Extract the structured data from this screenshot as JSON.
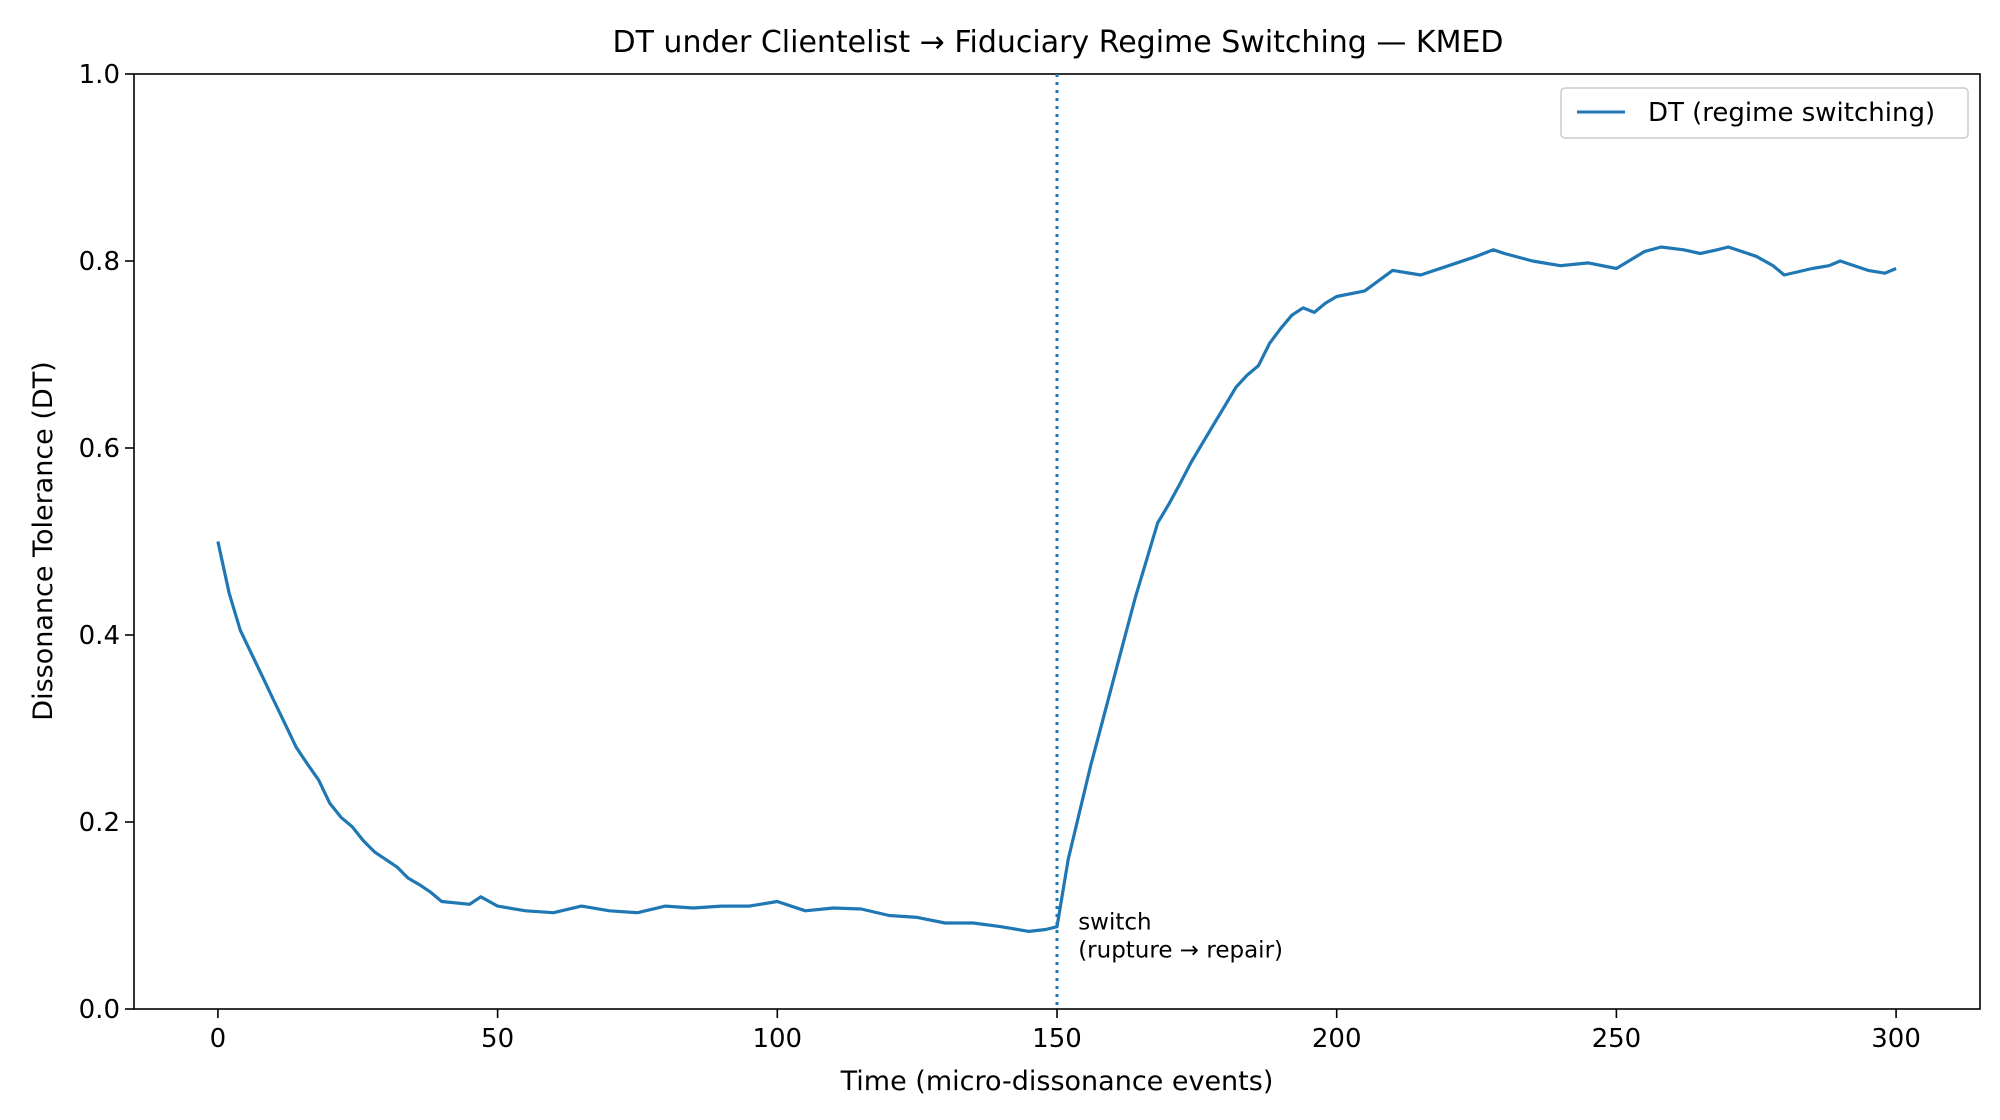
{
  "chart_data": {
    "type": "line",
    "title": "DT under Clientelist → Fiduciary Regime Switching — KMED",
    "xlabel": "Time (micro-dissonance events)",
    "ylabel": "Dissonance Tolerance (DT)",
    "xlim": [
      -15,
      315
    ],
    "ylim": [
      0,
      1.0
    ],
    "xticks": [
      0,
      50,
      100,
      150,
      200,
      250,
      300
    ],
    "yticks": [
      0.0,
      0.2,
      0.4,
      0.6,
      0.8,
      1.0
    ],
    "xtick_labels": [
      "0",
      "50",
      "100",
      "150",
      "200",
      "250",
      "300"
    ],
    "ytick_labels": [
      "0.0",
      "0.2",
      "0.4",
      "0.6",
      "0.8",
      "1.0"
    ],
    "grid": false,
    "legend_position": "top-right",
    "series": [
      {
        "name": "DT (regime switching)",
        "color": "#1f77b4",
        "x": [
          0,
          2,
          4,
          6,
          8,
          10,
          12,
          14,
          16,
          18,
          20,
          22,
          24,
          26,
          28,
          30,
          32,
          34,
          36,
          38,
          40,
          45,
          47,
          50,
          55,
          60,
          65,
          70,
          75,
          80,
          85,
          90,
          95,
          100,
          105,
          110,
          115,
          120,
          125,
          130,
          135,
          140,
          145,
          148,
          150,
          152,
          154,
          156,
          158,
          160,
          162,
          164,
          166,
          168,
          170,
          172,
          174,
          176,
          178,
          180,
          182,
          184,
          186,
          188,
          190,
          192,
          194,
          196,
          198,
          200,
          205,
          210,
          215,
          220,
          225,
          228,
          230,
          235,
          240,
          245,
          250,
          255,
          258,
          262,
          265,
          268,
          270,
          275,
          278,
          280,
          285,
          288,
          290,
          295,
          298,
          300
        ],
        "y": [
          0.5,
          0.445,
          0.405,
          0.38,
          0.355,
          0.33,
          0.305,
          0.28,
          0.262,
          0.245,
          0.22,
          0.205,
          0.195,
          0.18,
          0.168,
          0.16,
          0.152,
          0.14,
          0.133,
          0.125,
          0.115,
          0.112,
          0.12,
          0.11,
          0.105,
          0.103,
          0.11,
          0.105,
          0.103,
          0.11,
          0.108,
          0.11,
          0.11,
          0.115,
          0.105,
          0.108,
          0.107,
          0.1,
          0.098,
          0.092,
          0.092,
          0.088,
          0.083,
          0.085,
          0.088,
          0.16,
          0.21,
          0.26,
          0.305,
          0.35,
          0.395,
          0.44,
          0.48,
          0.52,
          0.54,
          0.562,
          0.585,
          0.605,
          0.625,
          0.645,
          0.665,
          0.678,
          0.688,
          0.712,
          0.728,
          0.742,
          0.75,
          0.745,
          0.755,
          0.762,
          0.768,
          0.79,
          0.785,
          0.795,
          0.805,
          0.812,
          0.808,
          0.8,
          0.795,
          0.798,
          0.792,
          0.81,
          0.815,
          0.812,
          0.808,
          0.812,
          0.815,
          0.805,
          0.795,
          0.785,
          0.792,
          0.795,
          0.8,
          0.79,
          0.787,
          0.792
        ]
      }
    ],
    "vline": {
      "x": 150,
      "style": "dotted",
      "color": "#1f77b4"
    },
    "annotation": {
      "x": 152,
      "y": 0.055,
      "lines": [
        "switch",
        "(rupture → repair)"
      ]
    }
  }
}
